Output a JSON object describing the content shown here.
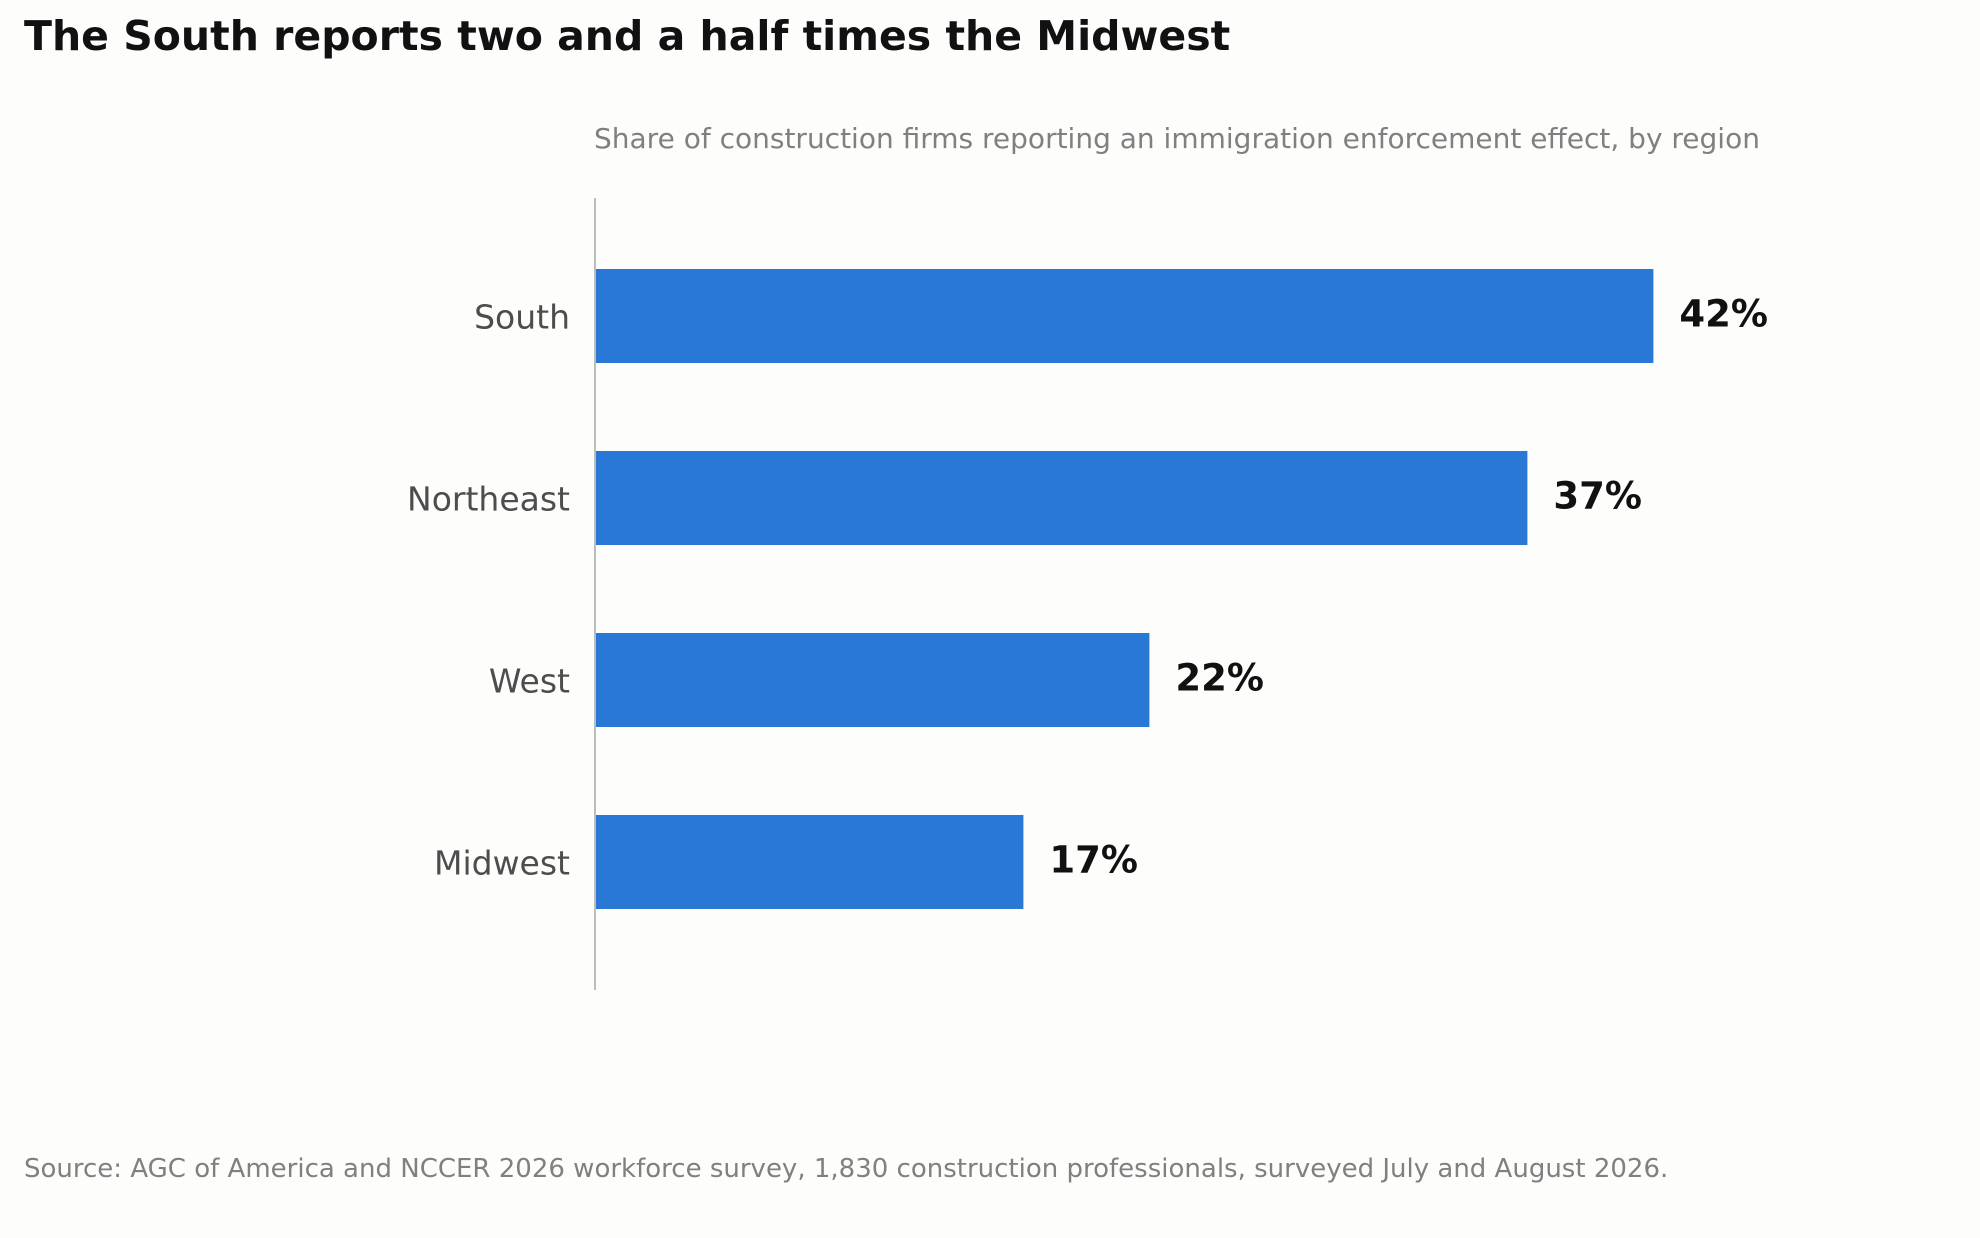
{
  "title": "The South reports two and a half times the Midwest",
  "subtitle": "Share of construction firms reporting an immigration enforcement effect, by region",
  "source": "Source: AGC of America and NCCER 2026 workforce survey, 1,830 construction professionals, surveyed July and August 2026.",
  "colors": {
    "bar": "#2a78d6",
    "axis": "#bdbdbd",
    "category_label": "#4d4d4d",
    "value_label": "#111111"
  },
  "chart_data": {
    "type": "bar",
    "orientation": "horizontal",
    "title": "The South reports two and a half times the Midwest",
    "subtitle": "Share of construction firms reporting an immigration enforcement effect, by region",
    "categories": [
      "South",
      "Northeast",
      "West",
      "Midwest"
    ],
    "values": [
      42,
      37,
      22,
      17
    ],
    "value_labels": [
      "42%",
      "37%",
      "22%",
      "17%"
    ],
    "unit": "%",
    "xlim": [
      0,
      50
    ],
    "grid": false,
    "legend": "none"
  }
}
